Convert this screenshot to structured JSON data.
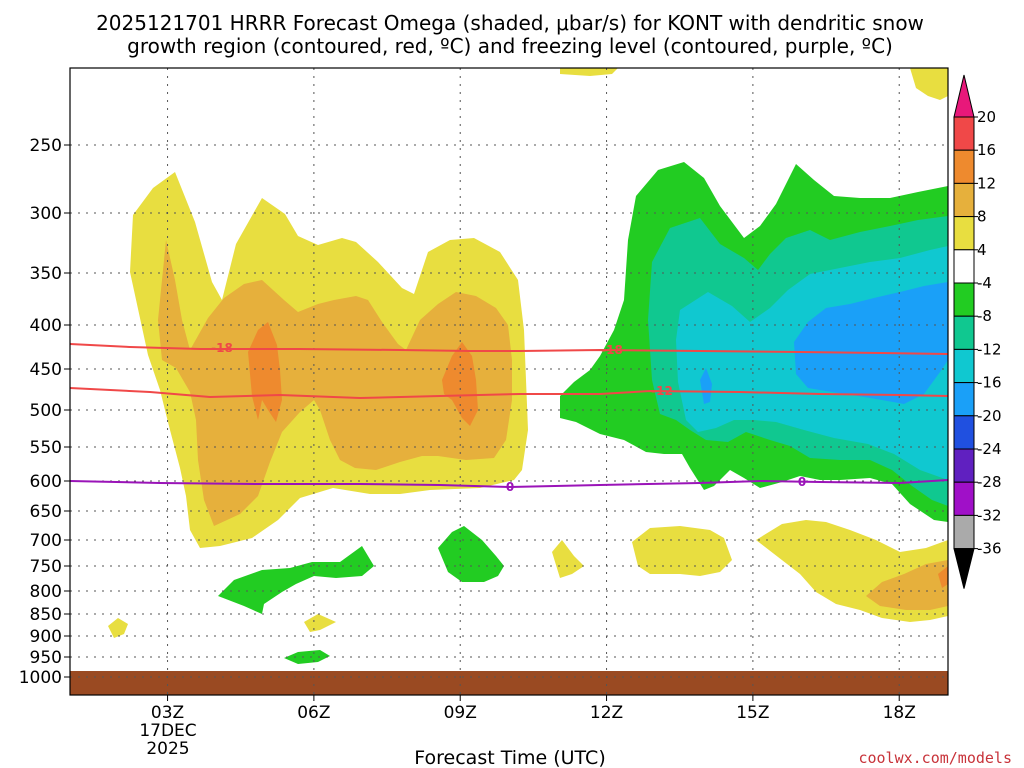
{
  "chart_data": {
    "type": "contour",
    "title_lines": [
      "2025121701 HRRR Forecast Omega (shaded, μbar/s) for KONT with dendritic snow",
      "growth region (contoured, red, ºC) and freezing level (contoured, purple, ºC)"
    ],
    "xlabel": "Forecast Time (UTC)",
    "credit": "coolwx.com/models",
    "x_ticks": [
      {
        "hour": 3,
        "label": "03Z"
      },
      {
        "hour": 6,
        "label": "06Z"
      },
      {
        "hour": 9,
        "label": "09Z"
      },
      {
        "hour": 12,
        "label": "12Z"
      },
      {
        "hour": 15,
        "label": "15Z"
      },
      {
        "hour": 18,
        "label": "18Z"
      }
    ],
    "date_sublabel": [
      "17DEC",
      "2025"
    ],
    "xlim": [
      1,
      19
    ],
    "y_ticks": [
      250,
      300,
      350,
      400,
      450,
      500,
      550,
      600,
      650,
      700,
      750,
      800,
      850,
      900,
      950,
      1000
    ],
    "ylim_hpa": [
      200,
      1000
    ],
    "surface_pressure_hpa": 980,
    "colorbar": {
      "labels": [
        "20",
        "16",
        "12",
        "8",
        "4",
        "-4",
        "-8",
        "-12",
        "-16",
        "-20",
        "-24",
        "-28",
        "-32",
        "-36"
      ],
      "colors": [
        "#e8187a",
        "#f04848",
        "#ee8a2e",
        "#e6b03c",
        "#e8de40",
        "#ffffff",
        "#22cc22",
        "#10c890",
        "#10c8d0",
        "#1aa0f8",
        "#2050e0",
        "#6020c0",
        "#a010c8",
        "#aaaaaa",
        "#000000"
      ]
    },
    "dendritic_contours": [
      {
        "label": "-18",
        "pressure_hpa": 425
      },
      {
        "label": "-12",
        "pressure_hpa": 482
      }
    ],
    "freezing_level": {
      "label": "0",
      "pressure_hpa": 603
    },
    "colors": {
      "omega_pos_4": "#e8de40",
      "omega_pos_8": "#e6b03c",
      "omega_pos_12": "#ee8a2e",
      "omega_neg_4": "#22cc22",
      "omega_neg_8": "#10c890",
      "omega_neg_12": "#10c8d0",
      "omega_neg_16": "#1aa0f8",
      "dgz_contour": "#f04848",
      "freezing_contour": "#9a14b8",
      "ground": "#9a4a22"
    }
  }
}
